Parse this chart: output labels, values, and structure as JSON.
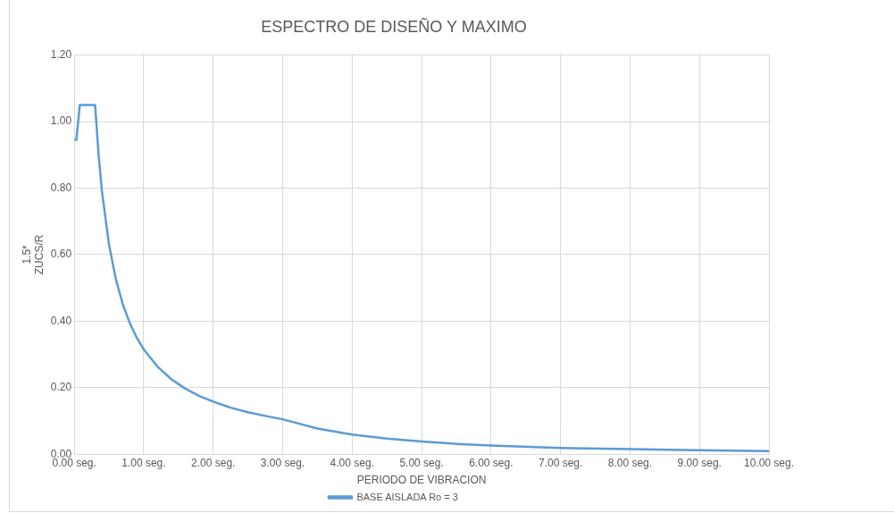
{
  "chart_data": {
    "type": "line",
    "title": "ESPECTRO DE DISEÑO Y MAXIMO",
    "xlabel": "PERIODO DE VIBRACION",
    "ylabel": "1.5*\nZUCS/R",
    "xlim": [
      0,
      10
    ],
    "ylim": [
      0,
      1.2
    ],
    "xticks": [
      {
        "value": 0,
        "label": "0.00 seg."
      },
      {
        "value": 1,
        "label": "1.00 seg."
      },
      {
        "value": 2,
        "label": "2.00 seg."
      },
      {
        "value": 3,
        "label": "3.00 seg."
      },
      {
        "value": 4,
        "label": "4.00 seg."
      },
      {
        "value": 5,
        "label": "5.00 seg."
      },
      {
        "value": 6,
        "label": "6.00 seg."
      },
      {
        "value": 7,
        "label": "7.00 seg."
      },
      {
        "value": 8,
        "label": "8.00 seg."
      },
      {
        "value": 9,
        "label": "9.00 seg."
      },
      {
        "value": 10,
        "label": "10.00 seg."
      }
    ],
    "yticks": [
      {
        "value": 0,
        "label": "0.00"
      },
      {
        "value": 0.2,
        "label": "0.20"
      },
      {
        "value": 0.4,
        "label": "0.40"
      },
      {
        "value": 0.6,
        "label": "0.60"
      },
      {
        "value": 0.8,
        "label": "0.80"
      },
      {
        "value": 1,
        "label": "1.00"
      },
      {
        "value": 1.2,
        "label": "1.20"
      }
    ],
    "grid": true,
    "legend": "bottom",
    "marker": "none",
    "line_style": "solid",
    "series": [
      {
        "name": "BASE AISLADA Ro = 3",
        "color": "#5b9bd5",
        "x": [
          0,
          0.03,
          0.08,
          0.1,
          0.2,
          0.3,
          0.35,
          0.4,
          0.5,
          0.6,
          0.7,
          0.8,
          0.9,
          1.0,
          1.2,
          1.4,
          1.6,
          1.8,
          2.0,
          2.25,
          2.5,
          2.75,
          3.0,
          3.5,
          4,
          4.5,
          5,
          5.5,
          6,
          7,
          8,
          9,
          10
        ],
        "values": [
          0.945,
          0.945,
          1.05,
          1.05,
          1.05,
          1.05,
          0.9,
          0.788,
          0.63,
          0.525,
          0.45,
          0.394,
          0.35,
          0.315,
          0.263,
          0.225,
          0.197,
          0.175,
          0.158,
          0.14,
          0.126,
          0.115,
          0.105,
          0.077,
          0.059,
          0.047,
          0.038,
          0.031,
          0.026,
          0.019,
          0.015,
          0.012,
          0.009
        ]
      }
    ]
  }
}
